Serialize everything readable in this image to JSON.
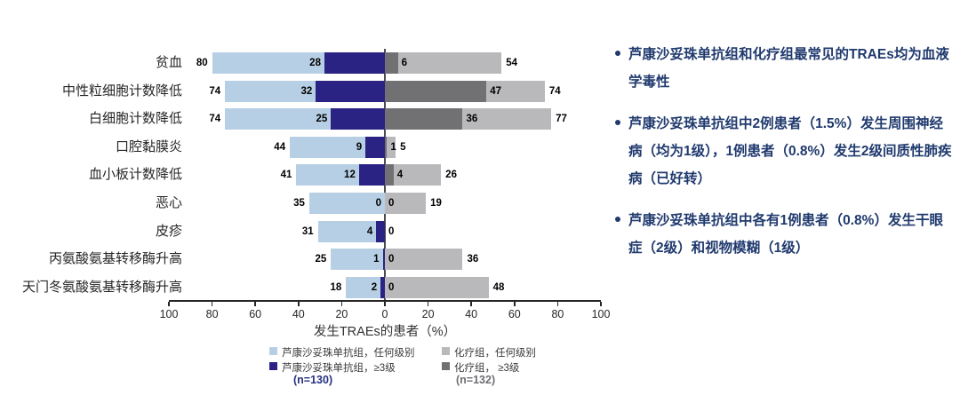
{
  "chart": {
    "axis_title": "发生TRAEs的患者（%）",
    "x_tick_labels": [
      "100",
      "80",
      "60",
      "40",
      "20",
      "0",
      "20",
      "40",
      "60",
      "80",
      "100"
    ],
    "legend": [
      {
        "label": "芦康沙妥珠单抗组，任何级别",
        "color": "#b7cfe4"
      },
      {
        "label": "芦康沙妥珠单抗组，≥3级",
        "color": "#2b2383"
      },
      {
        "label": "化疗组，任何级别",
        "color": "#b9b9bc"
      },
      {
        "label": "化疗组， ≥3级",
        "color": "#717174"
      }
    ],
    "n_labels": {
      "left": {
        "text": "(n=130)",
        "color": "#27317e"
      },
      "right": {
        "text": "(n=132)",
        "color": "#6e6e73"
      }
    }
  },
  "chart_data": {
    "type": "bar",
    "variant": "horizontal-diverging-tornado",
    "xlabel": "发生TRAEs的患者（%）",
    "xlim": [
      -100,
      100
    ],
    "x_tick_step": 20,
    "grid": false,
    "categories": [
      "贫血",
      "中性粒细胞计数降低",
      "白细胞计数降低",
      "口腔黏膜炎",
      "血小板计数降低",
      "恶心",
      "皮疹",
      "丙氨酸氨基转移酶升高",
      "天门冬氨酸氨基转移酶升高"
    ],
    "series": [
      {
        "name": "芦康沙妥珠单抗组，任何级别",
        "side": "left",
        "color": "#b7cfe4",
        "values": [
          80,
          74,
          74,
          44,
          41,
          35,
          31,
          25,
          18
        ],
        "labels": [
          "80",
          "74",
          "74",
          "44",
          "41",
          "35",
          "31",
          "25",
          "18"
        ]
      },
      {
        "name": "芦康沙妥珠单抗组，≥3级",
        "side": "left",
        "color": "#2b2383",
        "values": [
          28,
          32,
          25,
          9,
          12,
          0,
          4,
          1,
          2
        ],
        "labels": [
          "28",
          "32",
          "25",
          "9",
          "12",
          "0",
          "4",
          "1",
          "2"
        ]
      },
      {
        "name": "化疗组，≥3级",
        "side": "right",
        "color": "#717174",
        "values": [
          6,
          47,
          36,
          1,
          4,
          0,
          0,
          0,
          0
        ],
        "labels": [
          "6",
          "47",
          "36",
          "1",
          "4",
          "0",
          "0",
          "0",
          "0"
        ]
      },
      {
        "name": "化疗组，任何级别",
        "side": "right",
        "color": "#b9b9bc",
        "values": [
          54,
          74,
          77,
          5,
          26,
          19,
          0,
          36,
          48
        ],
        "labels": [
          "54",
          "74",
          "77",
          "5",
          "26",
          "19",
          "",
          "36",
          "48"
        ]
      }
    ],
    "n_left": "(n=130)",
    "n_right": "(n=132)"
  },
  "notes": {
    "bullets": [
      "芦康沙妥珠单抗组和化疗组最常见的TRAEs均为血液学毒性",
      "芦康沙妥珠单抗组中2例患者（1.5%）发生周围神经病（均为1级），1例患者（0.8%）发生2级间质性肺疾病（已好转）",
      "芦康沙妥珠单抗组中各有1例患者（0.8%）发生干眼症（2级）和视物模糊（1级）"
    ]
  }
}
